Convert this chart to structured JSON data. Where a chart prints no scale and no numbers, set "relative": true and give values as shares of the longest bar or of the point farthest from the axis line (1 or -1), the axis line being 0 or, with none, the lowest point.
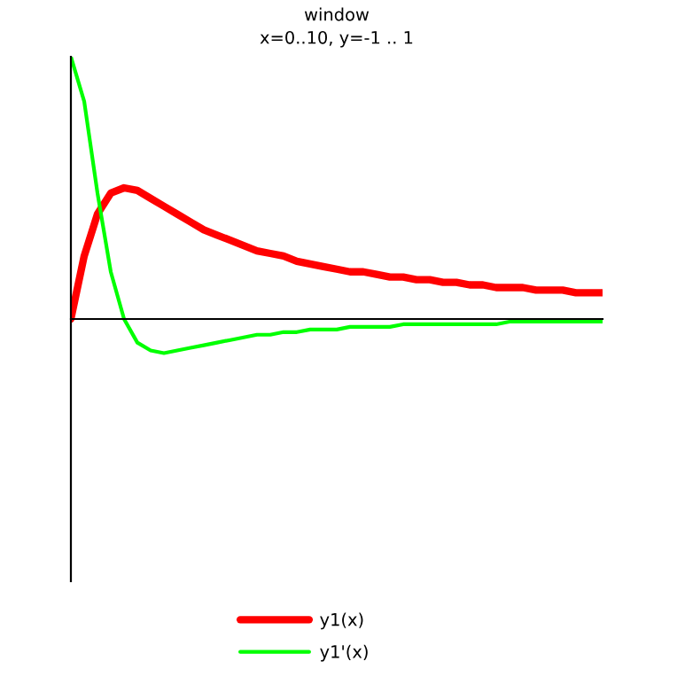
{
  "chart_data": {
    "type": "line",
    "title": "window",
    "subtitle": "x=0..10, y=-1 .. 1",
    "relative": true,
    "legend": "bottom",
    "marker": "none",
    "line_style": "solid",
    "categories": [
      null,
      null,
      null,
      null,
      null,
      null,
      null,
      null,
      null,
      null,
      null,
      null,
      null,
      null,
      null,
      null,
      null,
      null,
      null,
      null,
      null,
      null,
      null,
      null,
      null,
      null,
      null,
      null,
      null,
      null,
      null,
      null,
      null,
      null,
      null,
      null,
      null,
      null,
      null,
      null,
      null
    ],
    "series": [
      {
        "name": "y1(x)",
        "color": "#ff0000",
        "values": [
          0,
          0.24,
          0.4,
          0.48,
          0.5,
          0.49,
          0.46,
          0.43,
          0.4,
          0.37,
          0.34,
          0.32,
          0.3,
          0.28,
          0.26,
          0.25,
          0.24,
          0.22,
          0.21,
          0.2,
          0.19,
          0.18,
          0.18,
          0.17,
          0.16,
          0.16,
          0.15,
          0.15,
          0.14,
          0.14,
          0.13,
          0.13,
          0.12,
          0.12,
          0.12,
          0.11,
          0.11,
          0.11,
          0.1,
          0.1,
          0.1
        ]
      },
      {
        "name": "y1'(x)",
        "color": "#00ff00",
        "values": [
          1,
          0.83,
          0.48,
          0.18,
          0,
          -0.09,
          -0.12,
          -0.13,
          -0.12,
          -0.11,
          -0.1,
          -0.09,
          -0.08,
          -0.07,
          -0.06,
          -0.06,
          -0.05,
          -0.05,
          -0.04,
          -0.04,
          -0.04,
          -0.03,
          -0.03,
          -0.03,
          -0.03,
          -0.02,
          -0.02,
          -0.02,
          -0.02,
          -0.02,
          -0.02,
          -0.02,
          -0.02,
          -0.01,
          -0.01,
          -0.01,
          -0.01,
          -0.01,
          -0.01,
          -0.01,
          -0.01
        ]
      }
    ]
  }
}
